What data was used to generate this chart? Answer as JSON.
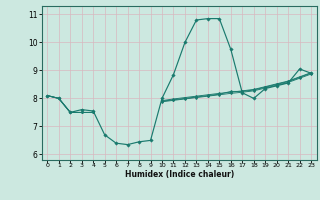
{
  "xlabel": "Humidex (Indice chaleur)",
  "background_color": "#cce8e0",
  "grid_color": "#b8d8d0",
  "line_color": "#1a7a6e",
  "xlim": [
    -0.5,
    23.5
  ],
  "ylim": [
    5.8,
    11.3
  ],
  "yticks": [
    6,
    7,
    8,
    9,
    10,
    11
  ],
  "xticks": [
    0,
    1,
    2,
    3,
    4,
    5,
    6,
    7,
    8,
    9,
    10,
    11,
    12,
    13,
    14,
    15,
    16,
    17,
    18,
    19,
    20,
    21,
    22,
    23
  ],
  "curves": [
    [
      8.1,
      8.0,
      7.5,
      7.6,
      7.55,
      6.7,
      6.4,
      6.35,
      6.45,
      6.5,
      8.0,
      8.85,
      10.0,
      10.8,
      10.85,
      10.85,
      9.75,
      8.2,
      8.0,
      8.35,
      8.45,
      8.55,
      9.05,
      8.9
    ],
    [
      8.1,
      8.0,
      7.5,
      7.5,
      7.5,
      null,
      null,
      null,
      null,
      null,
      7.9,
      7.95,
      8.0,
      8.05,
      8.1,
      8.15,
      8.25,
      8.25,
      8.3,
      8.4,
      8.5,
      8.6,
      8.75,
      8.9
    ],
    [
      8.1,
      8.0,
      7.5,
      7.5,
      7.5,
      null,
      null,
      null,
      null,
      null,
      7.92,
      7.98,
      8.03,
      8.08,
      8.13,
      8.18,
      8.22,
      8.27,
      8.32,
      8.42,
      8.52,
      8.62,
      8.77,
      8.92
    ],
    [
      8.1,
      8.0,
      7.5,
      7.5,
      7.5,
      null,
      null,
      null,
      null,
      null,
      7.88,
      7.93,
      7.98,
      8.03,
      8.08,
      8.13,
      8.18,
      8.22,
      8.27,
      8.37,
      8.47,
      8.57,
      8.72,
      8.87
    ]
  ]
}
